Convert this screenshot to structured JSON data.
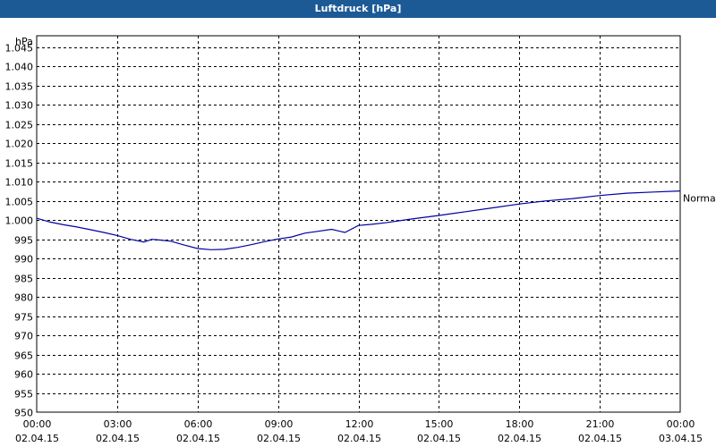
{
  "window": {
    "title": "Luftdruck [hPa]"
  },
  "chart_data": {
    "type": "line",
    "title": "Luftdruck [hPa]",
    "ylabel": "hPa",
    "ylim": [
      950,
      1048
    ],
    "y_ticks": [
      "950",
      "955",
      "960",
      "965",
      "970",
      "975",
      "980",
      "985",
      "990",
      "995",
      "1.000",
      "1.005",
      "1.010",
      "1.015",
      "1.020",
      "1.025",
      "1.030",
      "1.035",
      "1.040",
      "1.045"
    ],
    "y_tick_values": [
      950,
      955,
      960,
      965,
      970,
      975,
      980,
      985,
      990,
      995,
      1000,
      1005,
      1010,
      1015,
      1020,
      1025,
      1030,
      1035,
      1040,
      1045
    ],
    "x_ticks": [
      {
        "hour": 0,
        "time": "00:00",
        "date": "02.04.15"
      },
      {
        "hour": 3,
        "time": "03:00",
        "date": "02.04.15"
      },
      {
        "hour": 6,
        "time": "06:00",
        "date": "02.04.15"
      },
      {
        "hour": 9,
        "time": "09:00",
        "date": "02.04.15"
      },
      {
        "hour": 12,
        "time": "12:00",
        "date": "02.04.15"
      },
      {
        "hour": 15,
        "time": "15:00",
        "date": "02.04.15"
      },
      {
        "hour": 18,
        "time": "18:00",
        "date": "02.04.15"
      },
      {
        "hour": 21,
        "time": "21:00",
        "date": "02.04.15"
      },
      {
        "hour": 24,
        "time": "00:00",
        "date": "03.04.15"
      }
    ],
    "grid": true,
    "series": [
      {
        "name": "Normal",
        "color": "#0000a0",
        "x": [
          0,
          0.5,
          1,
          1.5,
          2,
          2.5,
          3,
          3.5,
          4,
          4.3,
          4.6,
          5,
          5.5,
          6,
          6.5,
          7,
          7.5,
          8,
          8.5,
          9,
          9.5,
          10,
          10.5,
          11,
          11.5,
          12,
          12.5,
          13,
          14,
          15,
          16,
          17,
          18,
          19,
          20,
          21,
          22,
          23,
          24
        ],
        "y": [
          1000.5,
          999.5,
          998.8,
          998.2,
          997.5,
          996.8,
          996.0,
          995.0,
          994.3,
          995.0,
          994.8,
          994.5,
          993.5,
          992.6,
          992.3,
          992.4,
          992.9,
          993.6,
          994.4,
          995.1,
          995.6,
          996.6,
          997.1,
          997.6,
          996.8,
          998.6,
          998.9,
          999.3,
          1000.3,
          1001.2,
          1002.2,
          1003.2,
          1004.2,
          1005.0,
          1005.6,
          1006.4,
          1007.0,
          1007.3,
          1007.6
        ]
      }
    ]
  }
}
